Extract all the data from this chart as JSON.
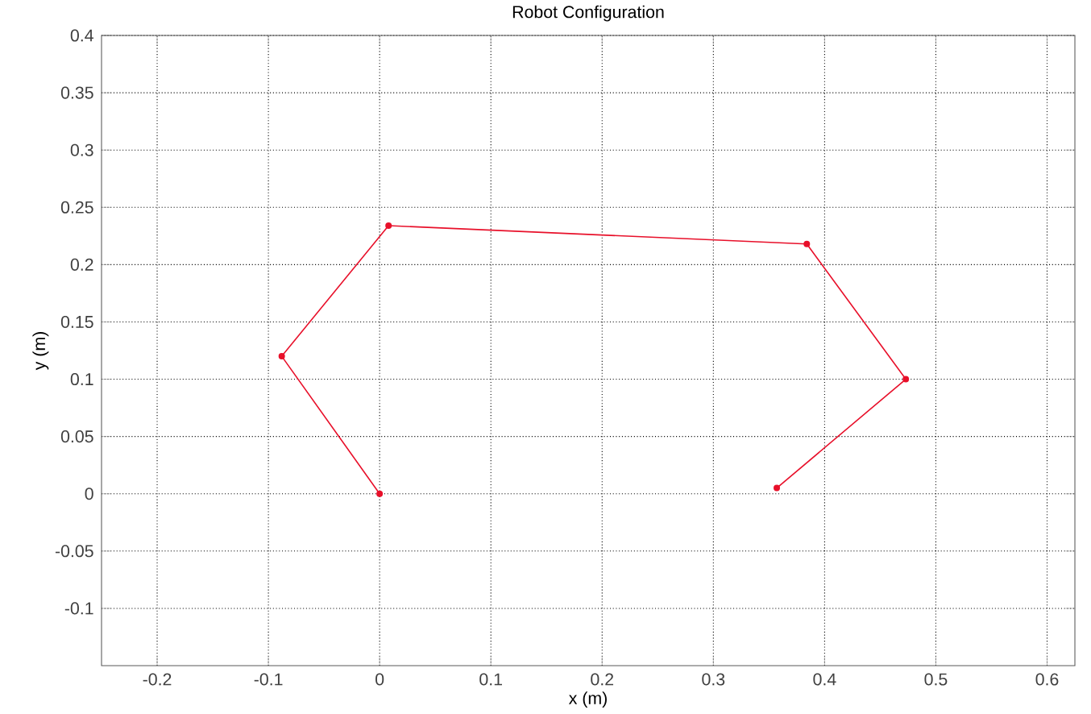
{
  "chart_data": {
    "type": "line",
    "title": "Robot Configuration",
    "xlabel": "x (m)",
    "ylabel": "y (m)",
    "series": [
      {
        "color": "#e8102a",
        "x": [
          0,
          -0.088,
          0.008,
          0.384,
          0.473,
          0.357
        ],
        "values": [
          0,
          0.12,
          0.234,
          0.218,
          0.1,
          0.005
        ]
      }
    ],
    "marker": "circle",
    "line_style": "solid",
    "grid": true,
    "xlim": [
      -0.25,
      0.625
    ],
    "ylim": [
      -0.15,
      0.4
    ],
    "xticks": [
      -0.2,
      -0.1,
      0,
      0.1,
      0.2,
      0.3,
      0.4,
      0.5,
      0.6
    ],
    "yticks": [
      -0.1,
      -0.05,
      0,
      0.05,
      0.1,
      0.15,
      0.2,
      0.25,
      0.3,
      0.35,
      0.4
    ]
  }
}
